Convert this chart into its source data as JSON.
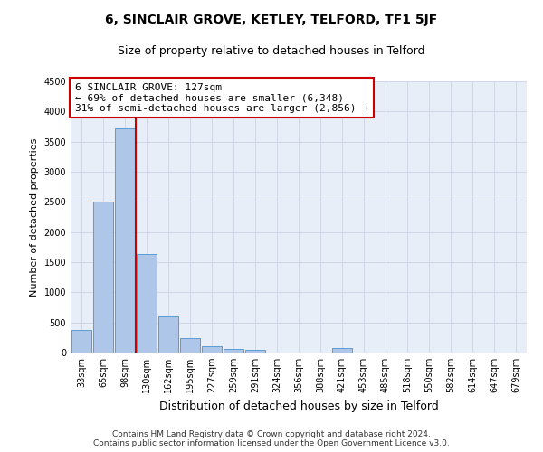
{
  "title": "6, SINCLAIR GROVE, KETLEY, TELFORD, TF1 5JF",
  "subtitle": "Size of property relative to detached houses in Telford",
  "xlabel": "Distribution of detached houses by size in Telford",
  "ylabel": "Number of detached properties",
  "categories": [
    "33sqm",
    "65sqm",
    "98sqm",
    "130sqm",
    "162sqm",
    "195sqm",
    "227sqm",
    "259sqm",
    "291sqm",
    "324sqm",
    "356sqm",
    "388sqm",
    "421sqm",
    "453sqm",
    "485sqm",
    "518sqm",
    "550sqm",
    "582sqm",
    "614sqm",
    "647sqm",
    "679sqm"
  ],
  "values": [
    370,
    2500,
    3720,
    1630,
    600,
    240,
    110,
    65,
    50,
    0,
    0,
    0,
    75,
    0,
    0,
    0,
    0,
    0,
    0,
    0,
    0
  ],
  "bar_color": "#aec6e8",
  "bar_edge_color": "#5b9bd5",
  "vline_color": "#cc0000",
  "annotation_text": "6 SINCLAIR GROVE: 127sqm\n← 69% of detached houses are smaller (6,348)\n31% of semi-detached houses are larger (2,856) →",
  "annotation_box_color": "#ffffff",
  "annotation_box_edge_color": "#cc0000",
  "ylim": [
    0,
    4500
  ],
  "yticks": [
    0,
    500,
    1000,
    1500,
    2000,
    2500,
    3000,
    3500,
    4000,
    4500
  ],
  "grid_color": "#d0d8e8",
  "background_color": "#e8eef8",
  "footer": "Contains HM Land Registry data © Crown copyright and database right 2024.\nContains public sector information licensed under the Open Government Licence v3.0.",
  "title_fontsize": 10,
  "subtitle_fontsize": 9,
  "xlabel_fontsize": 9,
  "ylabel_fontsize": 8,
  "tick_fontsize": 7,
  "annotation_fontsize": 8,
  "footer_fontsize": 6.5
}
